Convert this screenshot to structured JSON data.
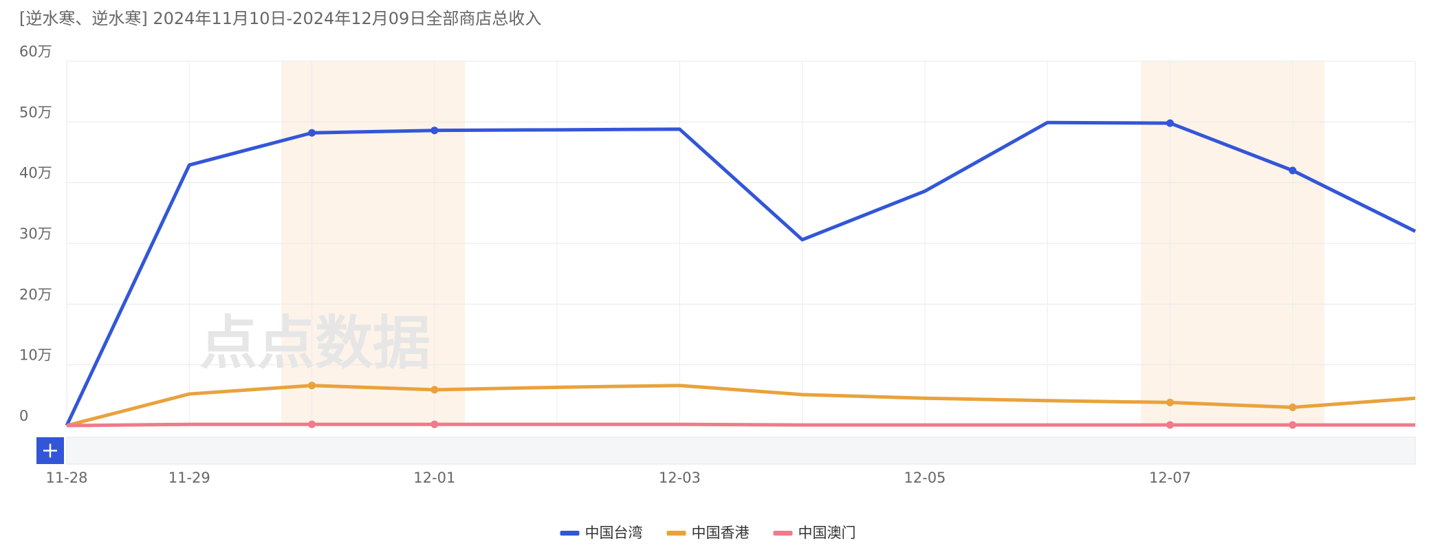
{
  "chart_data": {
    "type": "line",
    "title": "[逆水寒、逆水寒] 2024年11月10日-2024年12月09日全部商店总收入",
    "watermark": "点点数据",
    "categories": [
      "11-28",
      "11-29",
      null,
      "12-01",
      null,
      "12-03",
      null,
      "12-05",
      null,
      "12-07",
      null,
      null
    ],
    "series": [
      {
        "name": "中国台湾",
        "color": "#3356d8",
        "values": [
          0,
          42.9,
          48.2,
          48.6,
          48.7,
          48.8,
          30.6,
          38.6,
          49.9,
          49.8,
          42.0,
          32.0
        ]
      },
      {
        "name": "中国香港",
        "color": "#e9a23b",
        "values": [
          0,
          5.2,
          6.6,
          5.9,
          6.3,
          6.6,
          5.1,
          4.5,
          4.1,
          3.8,
          3.0,
          4.5
        ]
      },
      {
        "name": "中国澳门",
        "color": "#ef7b8b",
        "values": [
          0,
          0.2,
          0.2,
          0.2,
          0.2,
          0.2,
          0.1,
          0.1,
          0.1,
          0.1,
          0.1,
          0.1
        ]
      }
    ],
    "ylim": [
      0,
      60
    ],
    "yticks": [
      0,
      {
        "value": 10,
        "label": "10万"
      },
      {
        "value": 20,
        "label": "20万"
      },
      {
        "value": 30,
        "label": "30万"
      },
      {
        "value": 40,
        "label": "40万"
      },
      {
        "value": 50,
        "label": "50万"
      },
      {
        "value": 60,
        "label": "60万"
      }
    ],
    "grid": true,
    "legend": "bottom"
  }
}
